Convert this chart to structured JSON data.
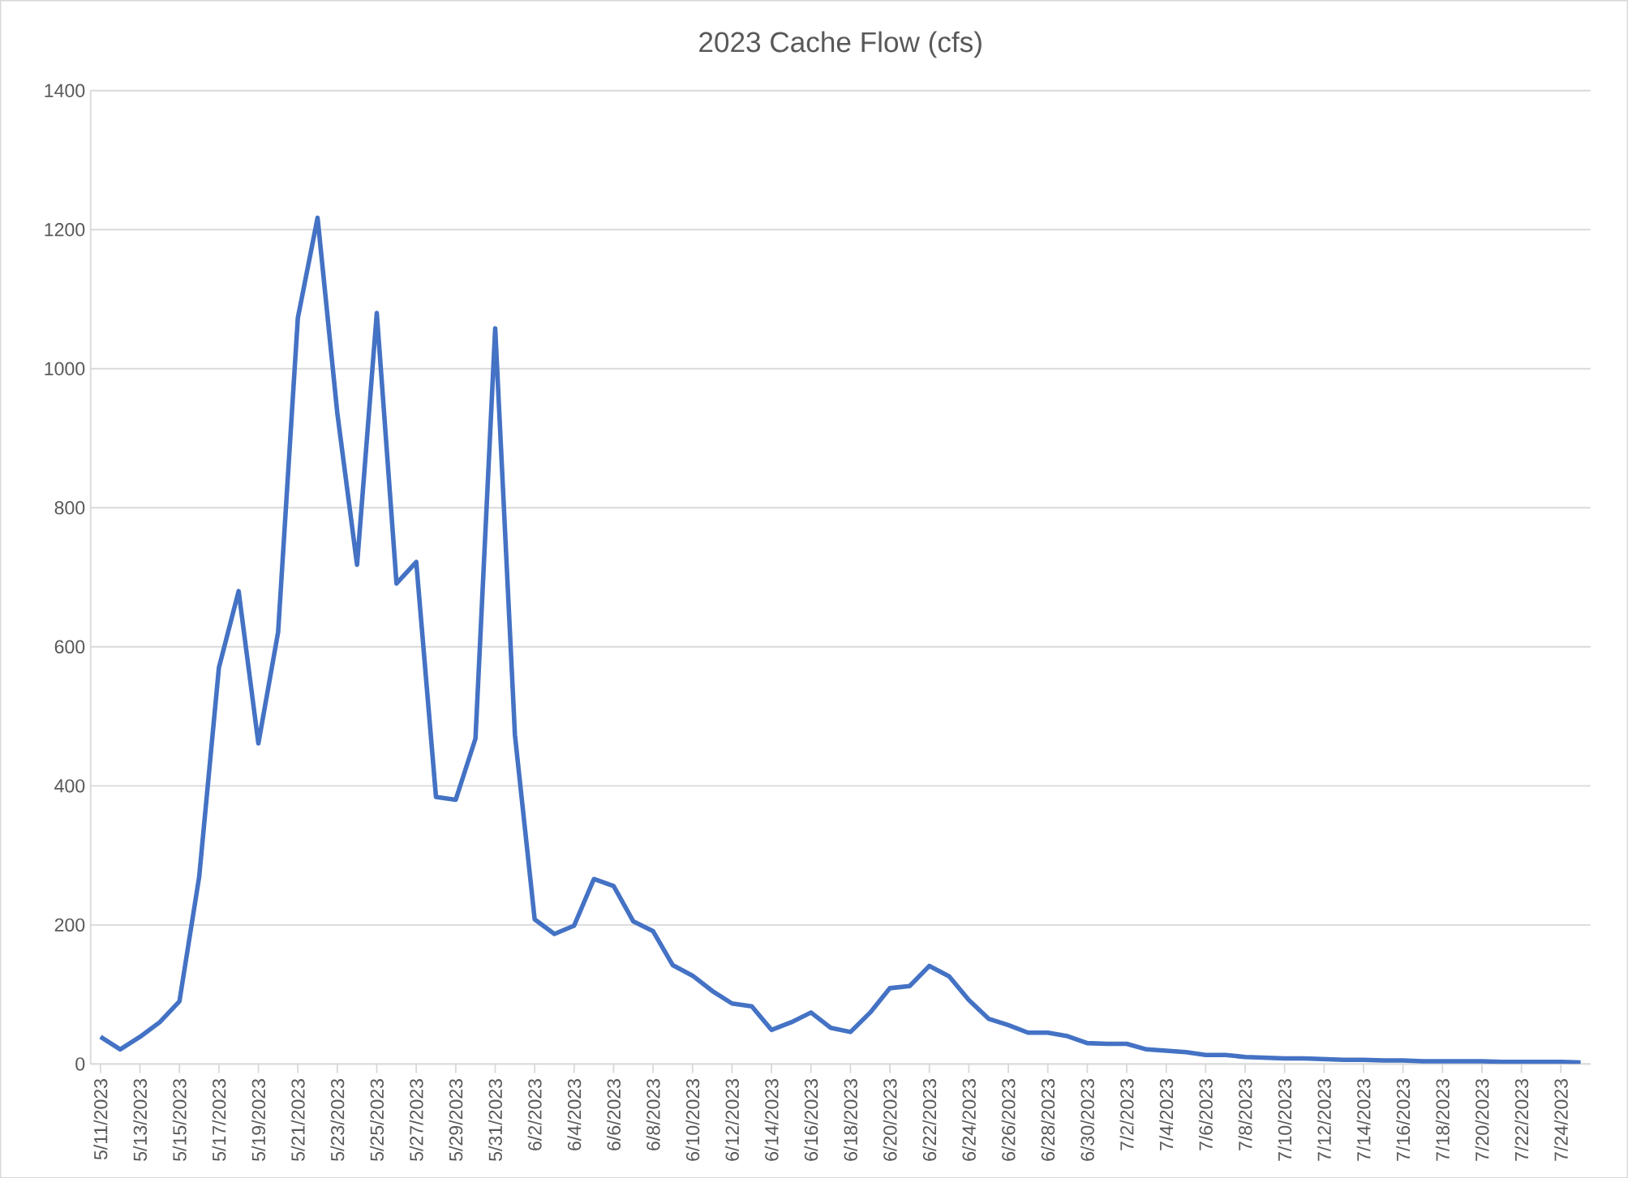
{
  "chart_data": {
    "type": "line",
    "title": "2023 Cache Flow (cfs)",
    "categories": [
      "5/11/2023",
      null,
      "5/13/2023",
      null,
      "5/15/2023",
      null,
      "5/17/2023",
      null,
      "5/19/2023",
      null,
      "5/21/2023",
      null,
      "5/23/2023",
      null,
      "5/25/2023",
      null,
      "5/27/2023",
      null,
      "5/29/2023",
      null,
      "5/31/2023",
      null,
      "6/2/2023",
      null,
      "6/4/2023",
      null,
      "6/6/2023",
      null,
      "6/8/2023",
      null,
      "6/10/2023",
      null,
      "6/12/2023",
      null,
      "6/14/2023",
      null,
      "6/16/2023",
      null,
      "6/18/2023",
      null,
      "6/20/2023",
      null,
      "6/22/2023",
      null,
      "6/24/2023",
      null,
      "6/26/2023",
      null,
      "6/28/2023",
      null,
      "6/30/2023",
      null,
      "7/2/2023",
      null,
      "7/4/2023",
      null,
      "7/6/2023",
      null,
      "7/8/2023",
      null,
      "7/10/2023",
      null,
      "7/12/2023",
      null,
      "7/14/2023",
      null,
      "7/16/2023",
      null,
      "7/18/2023",
      null,
      "7/20/2023",
      null,
      "7/22/2023",
      null,
      "7/24/2023",
      null
    ],
    "values": [
      39,
      21,
      39,
      60,
      90,
      269,
      570,
      680,
      461,
      621,
      1073,
      1217,
      936,
      718,
      1080,
      691,
      722,
      384,
      380,
      468,
      1058,
      473,
      208,
      187,
      199,
      266,
      256,
      205,
      191,
      142,
      127,
      105,
      87,
      83,
      49,
      60,
      74,
      52,
      46,
      74,
      109,
      112,
      141,
      126,
      92,
      65,
      56,
      45,
      45,
      40,
      30,
      29,
      29,
      21,
      19,
      17,
      13,
      13,
      10,
      9,
      8,
      8,
      7,
      6,
      6,
      5,
      5,
      4,
      4,
      4,
      4,
      3,
      3,
      3,
      3,
      2
    ],
    "color": "#4472c4",
    "ylim": [
      0,
      1400
    ],
    "yticks": [
      0,
      200,
      400,
      600,
      800,
      1000,
      1200,
      1400
    ],
    "grid": "y",
    "marker": "none",
    "line_style": "solid"
  }
}
